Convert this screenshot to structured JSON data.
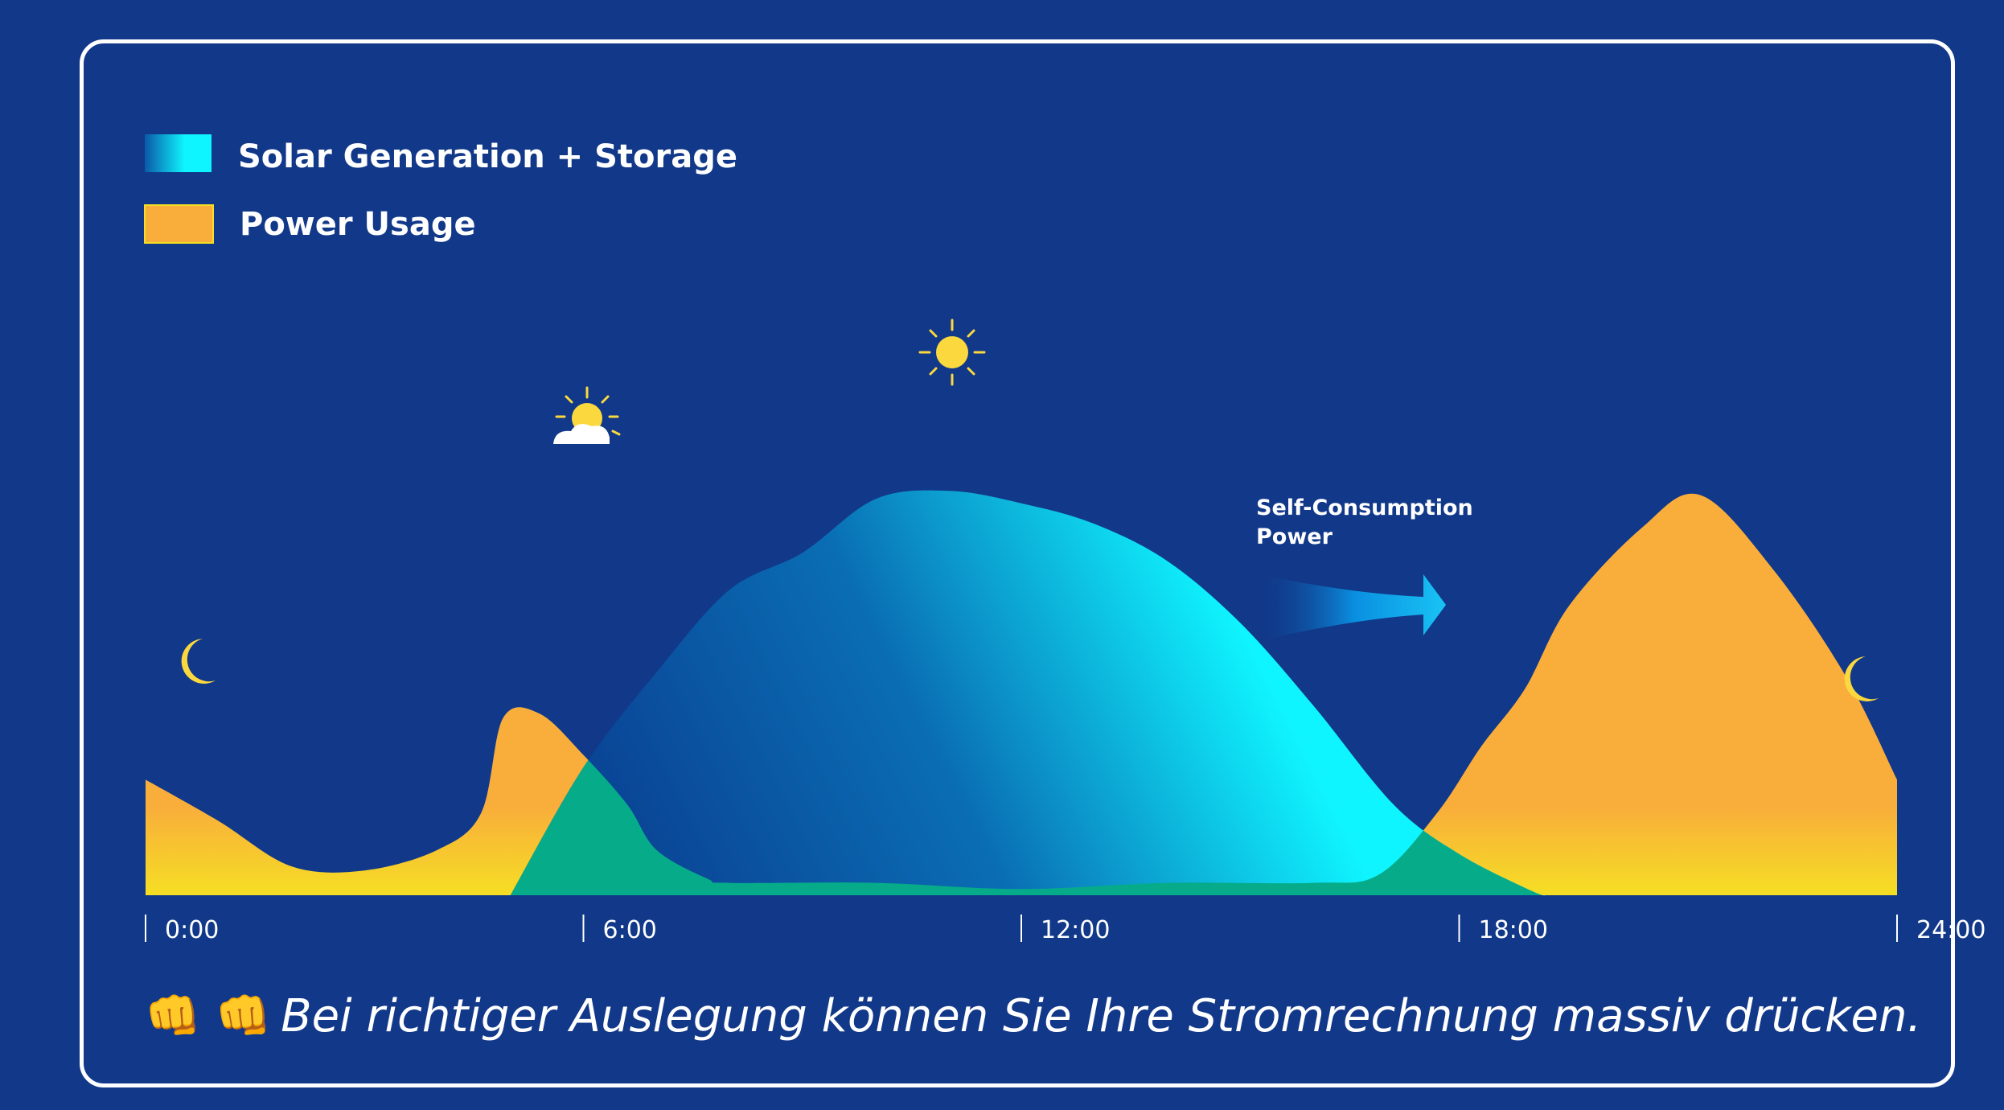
{
  "chart_data": {
    "type": "area",
    "title": "",
    "xlabel": "",
    "ylabel": "",
    "x_ticks": [
      "0:00",
      "6:00",
      "12:00",
      "18:00",
      "24:00"
    ],
    "xlim": [
      0,
      24
    ],
    "ylim": [
      0,
      10
    ],
    "grid": false,
    "legend_position": "top-left",
    "series": [
      {
        "name": "Power Usage",
        "color": "#f9ae3b",
        "points": [
          [
            0,
            2.8
          ],
          [
            1,
            1.8
          ],
          [
            2,
            0.7
          ],
          [
            3,
            0.6
          ],
          [
            4,
            1.1
          ],
          [
            4.6,
            2.0
          ],
          [
            4.9,
            4.3
          ],
          [
            5.4,
            4.4
          ],
          [
            6,
            3.4
          ],
          [
            6.6,
            2.2
          ],
          [
            7,
            1.1
          ],
          [
            7.7,
            0.4
          ],
          [
            8,
            0.3
          ],
          [
            10,
            0.3
          ],
          [
            12,
            0.15
          ],
          [
            14,
            0.3
          ],
          [
            16,
            0.3
          ],
          [
            16.9,
            0.5
          ],
          [
            17.7,
            2.0
          ],
          [
            18.3,
            3.6
          ],
          [
            18.9,
            5.0
          ],
          [
            19.5,
            7.0
          ],
          [
            20.5,
            8.9
          ],
          [
            21.3,
            9.7
          ],
          [
            22.3,
            7.9
          ],
          [
            23.3,
            5.3
          ],
          [
            24,
            2.8
          ]
        ]
      },
      {
        "name": "Solar Generation + Storage",
        "color": "#0ff5ff",
        "points": [
          [
            5,
            0
          ],
          [
            6,
            3.1
          ],
          [
            7,
            5.4
          ],
          [
            8,
            7.4
          ],
          [
            9,
            8.3
          ],
          [
            10,
            9.6
          ],
          [
            11,
            9.8
          ],
          [
            12,
            9.5
          ],
          [
            13,
            9.0
          ],
          [
            14,
            8.1
          ],
          [
            15,
            6.6
          ],
          [
            16,
            4.6
          ],
          [
            17.1,
            2.2
          ],
          [
            18,
            1.0
          ],
          [
            19,
            0.1
          ],
          [
            19.2,
            0
          ]
        ]
      }
    ],
    "annotations": [
      "Self-Consumption",
      "Power"
    ]
  },
  "legend": [
    {
      "label": "Solar Generation + Storage"
    },
    {
      "label": "Power Usage"
    }
  ],
  "icons": {
    "left": "moon-icon",
    "morning": "sun-behind-cloud-icon",
    "noon": "sun-icon",
    "right": "moon-icon"
  },
  "caption": {
    "emoji": "👊 👊",
    "text": "Bei richtiger Auslegung können Sie Ihre Stromrechnung massiv drücken."
  }
}
